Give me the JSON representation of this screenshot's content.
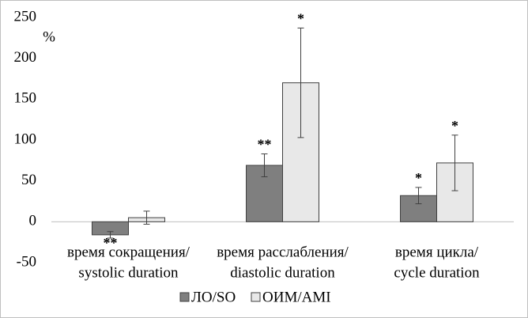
{
  "chart_data": {
    "type": "bar",
    "y_label": "%",
    "categories": [
      [
        "время сокращения/",
        "systolic duration"
      ],
      [
        "время расслабления/",
        "diastolic duration"
      ],
      [
        "время цикла/",
        "cycle duration"
      ]
    ],
    "series": [
      {
        "name": "ЛО/SO",
        "color": "#7f7f7f",
        "values": [
          -16,
          69,
          32
        ],
        "errors": [
          4,
          14,
          10
        ],
        "annotations": [
          "**",
          "**",
          "*"
        ]
      },
      {
        "name": "ОИМ/AMI",
        "color": "#e8e8e8",
        "values": [
          5,
          170,
          72
        ],
        "errors": [
          8,
          67,
          34
        ],
        "annotations": [
          null,
          "*",
          "*"
        ]
      }
    ],
    "ylim": [
      -50,
      250
    ],
    "yticks": [
      -50,
      0,
      50,
      100,
      150,
      200,
      250
    ],
    "grid": false,
    "legend": "bottom"
  }
}
